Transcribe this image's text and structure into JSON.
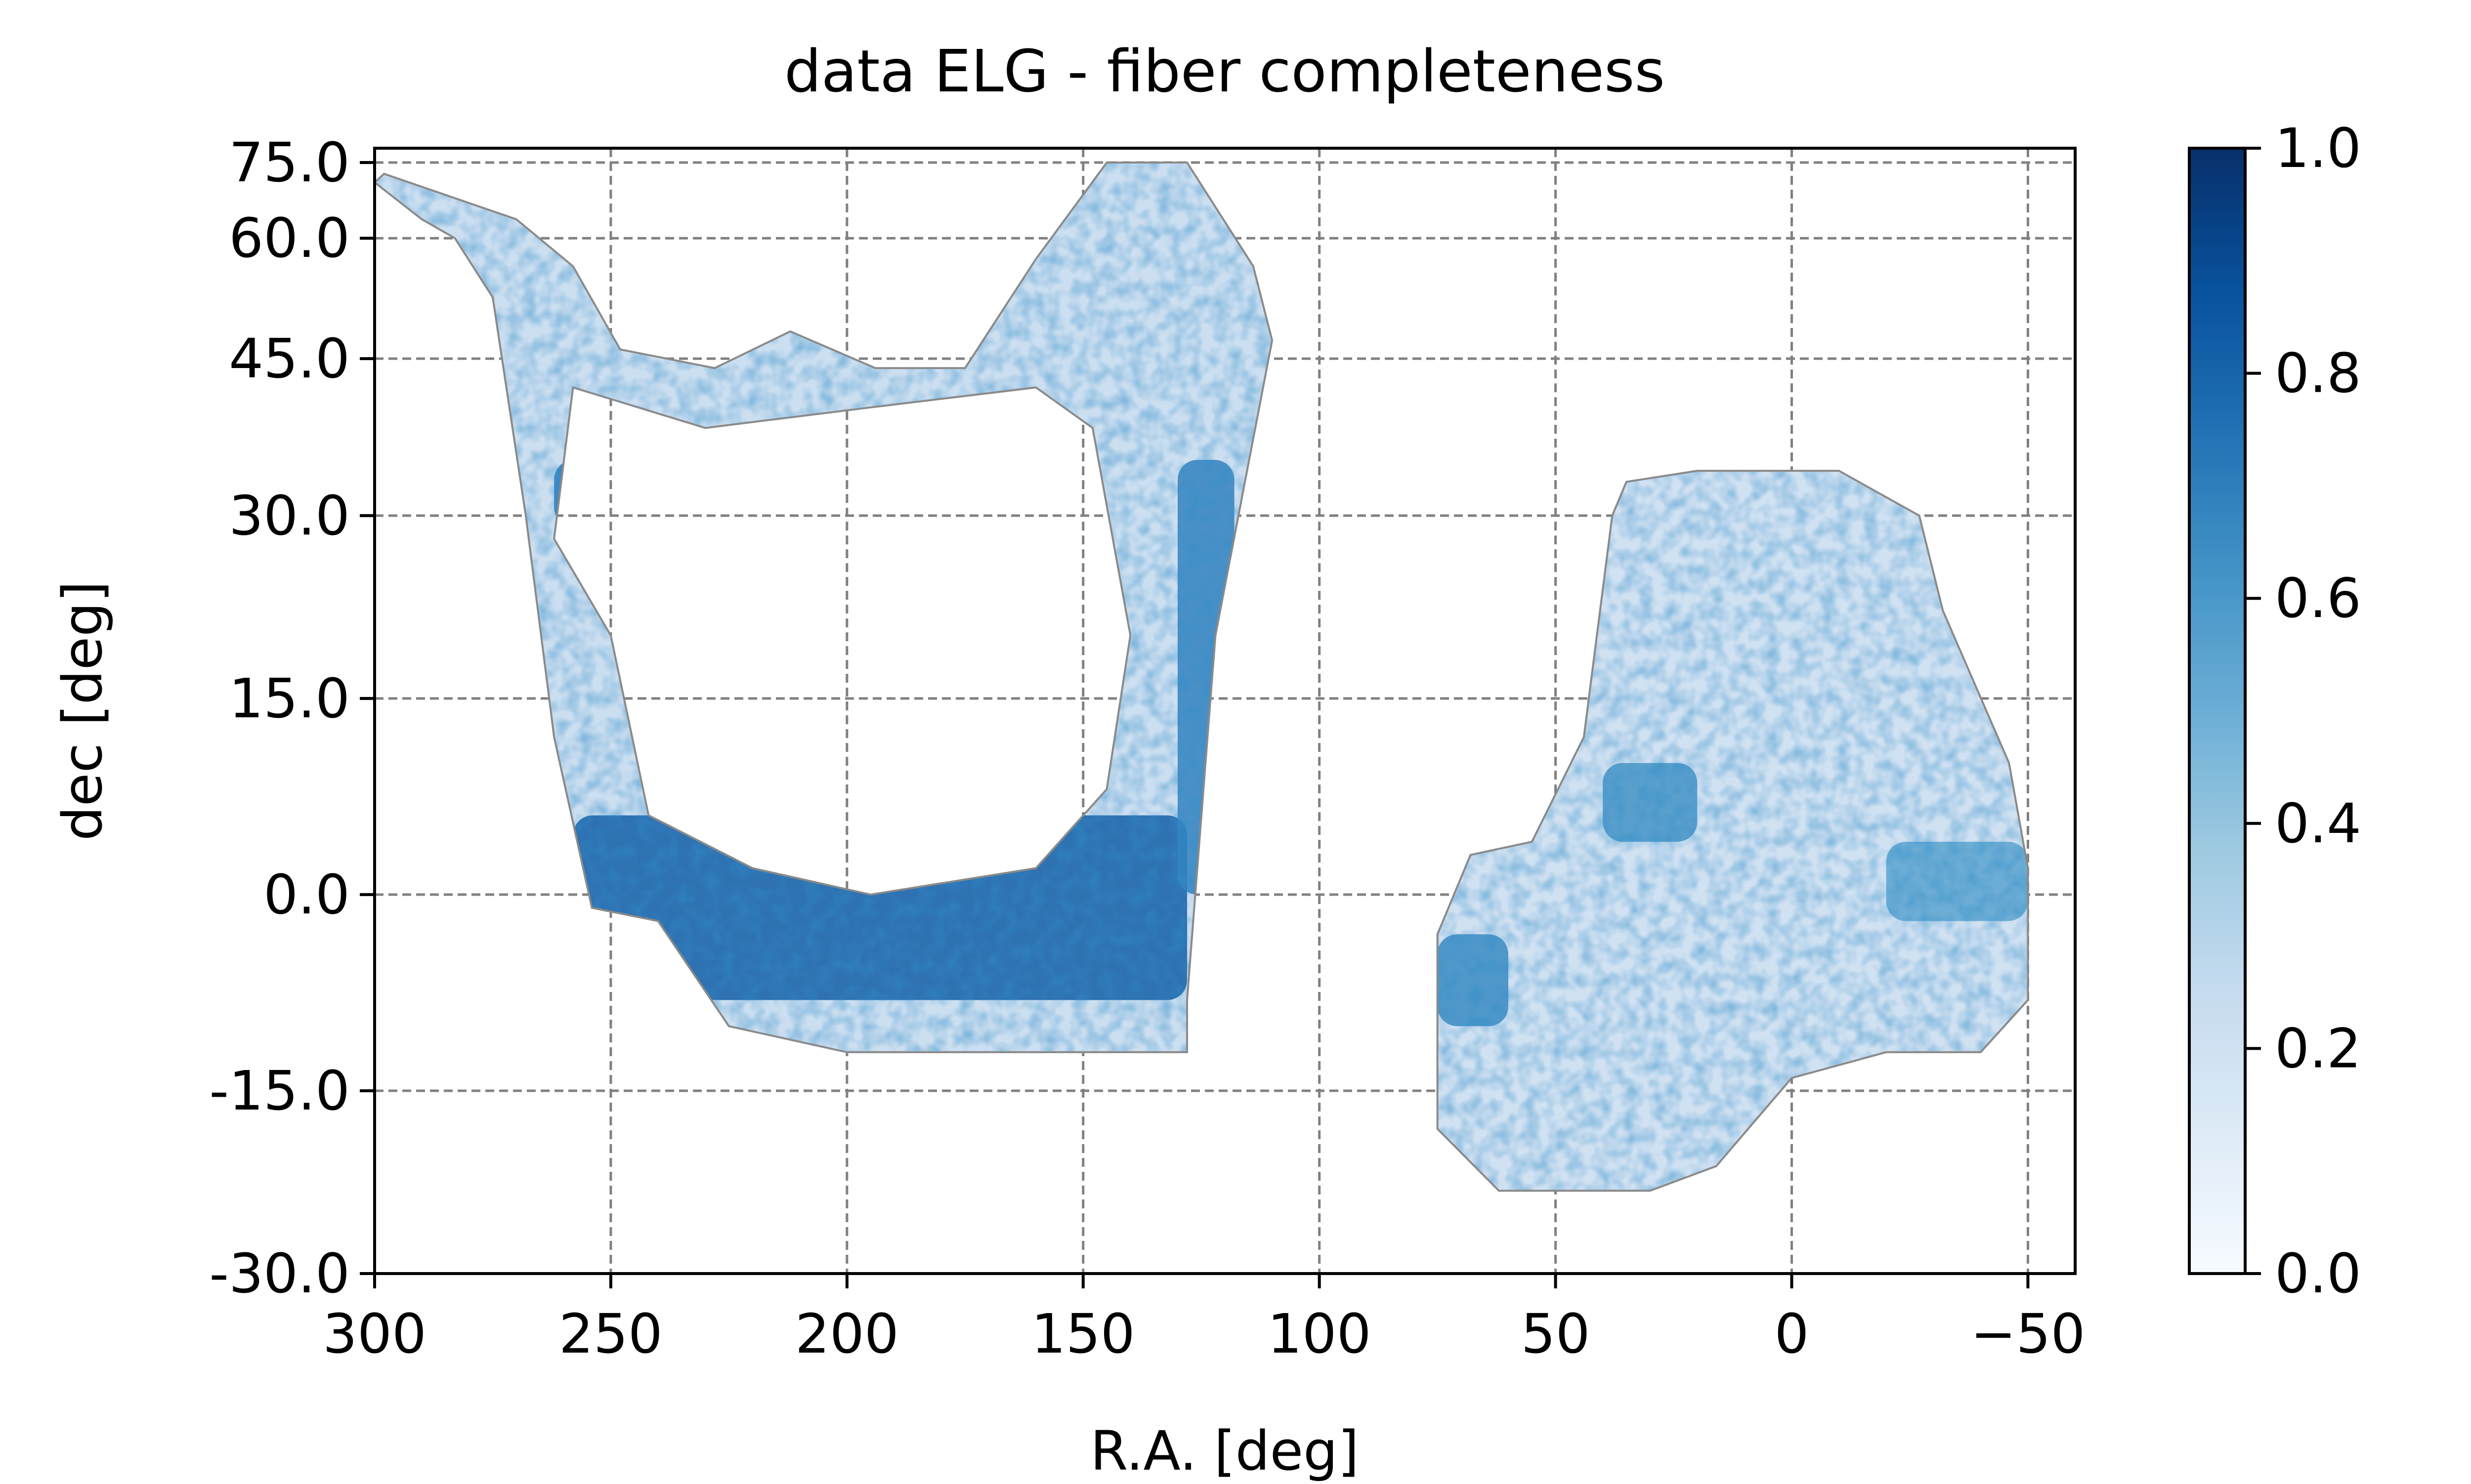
{
  "chart_data": {
    "type": "heatmap",
    "title": "data ELG - fiber completeness",
    "xlabel": "R.A. [deg]",
    "ylabel": "dec [deg]",
    "x_axis": {
      "ticks": [
        300,
        250,
        200,
        150,
        100,
        50,
        0,
        -50
      ],
      "tick_labels": [
        "300",
        "250",
        "200",
        "150",
        "100",
        "50",
        "0",
        "−50"
      ],
      "range": [
        300,
        -60
      ],
      "inverted": true
    },
    "y_axis": {
      "scale": "sin(dec)",
      "ticks": [
        -30,
        -15,
        0,
        15,
        30,
        45,
        60,
        75
      ],
      "tick_labels": [
        "-30.0",
        "-15.0",
        "0.0",
        "15.0",
        "30.0",
        "45.0",
        "60.0",
        "75.0"
      ],
      "range": [
        -30,
        80
      ]
    },
    "grid": true,
    "colorbar": {
      "colormap": "Blues",
      "min": 0.0,
      "max": 1.0,
      "ticks": [
        0.0,
        0.2,
        0.4,
        0.6,
        0.8,
        1.0
      ],
      "tick_labels": [
        "0.0",
        "0.2",
        "0.4",
        "0.6",
        "0.8",
        "1.0"
      ],
      "colors": [
        "#f7fbff",
        "#deebf7",
        "#c6dbef",
        "#9ecae1",
        "#6baed6",
        "#4292c6",
        "#2171b5",
        "#08519c",
        "#08306b"
      ]
    },
    "footprints": [
      {
        "name": "north-galactic-cap",
        "outline_radec": [
          [
            298,
            72
          ],
          [
            270,
            63
          ],
          [
            258,
            56
          ],
          [
            248,
            46
          ],
          [
            228,
            44
          ],
          [
            212,
            48
          ],
          [
            194,
            44
          ],
          [
            175,
            44
          ],
          [
            160,
            57
          ],
          [
            145,
            75
          ],
          [
            128,
            75
          ],
          [
            114,
            56
          ],
          [
            110,
            47
          ],
          [
            122,
            20
          ],
          [
            128,
            -8
          ],
          [
            128,
            -12
          ],
          [
            200,
            -12
          ],
          [
            225,
            -10
          ],
          [
            240,
            -2
          ],
          [
            254,
            -1
          ],
          [
            262,
            12
          ],
          [
            268,
            30
          ],
          [
            275,
            52
          ],
          [
            283,
            60
          ],
          [
            290,
            63
          ],
          [
            300,
            70
          ]
        ],
        "holes_radec": [
          [
            [
              262,
              28
            ],
            [
              250,
              20
            ],
            [
              242,
              6
            ],
            [
              220,
              2
            ],
            [
              195,
              0
            ],
            [
              160,
              2
            ],
            [
              145,
              8
            ],
            [
              140,
              20
            ],
            [
              148,
              38
            ],
            [
              160,
              42
            ],
            [
              195,
              40
            ],
            [
              230,
              38
            ],
            [
              258,
              42
            ]
          ]
        ],
        "features": [
          {
            "name": "dec-zero-band",
            "ra": [
              128,
              258
            ],
            "dec": [
              -8,
              6
            ],
            "value": 0.82
          },
          {
            "name": "dec-thirty-band",
            "ra": [
              180,
              262
            ],
            "dec": [
              29,
              35
            ],
            "value": 0.72
          },
          {
            "name": "east-edge-band",
            "ra": [
              118,
              130
            ],
            "dec": [
              0,
              35
            ],
            "value": 0.68
          }
        ],
        "base_value": 0.22
      },
      {
        "name": "south-galactic-cap",
        "outline_radec": [
          [
            75,
            -3
          ],
          [
            75,
            -18
          ],
          [
            62,
            -23
          ],
          [
            50,
            -23
          ],
          [
            30,
            -23
          ],
          [
            16,
            -21
          ],
          [
            0,
            -14
          ],
          [
            -20,
            -12
          ],
          [
            -40,
            -12
          ],
          [
            -50,
            -8
          ],
          [
            -50,
            2
          ],
          [
            -46,
            10
          ],
          [
            -32,
            22
          ],
          [
            -27,
            30
          ],
          [
            -10,
            34
          ],
          [
            20,
            34
          ],
          [
            35,
            33
          ],
          [
            38,
            30
          ],
          [
            44,
            12
          ],
          [
            55,
            4
          ],
          [
            68,
            3
          ]
        ],
        "features": [
          {
            "name": "dec-eight-band",
            "ra": [
              20,
              40
            ],
            "dec": [
              4,
              10
            ],
            "value": 0.62
          },
          {
            "name": "west-patch",
            "ra": [
              60,
              75
            ],
            "dec": [
              -10,
              -3
            ],
            "value": 0.65
          },
          {
            "name": "dec-zero-east",
            "ra": [
              -50,
              -20
            ],
            "dec": [
              -2,
              4
            ],
            "value": 0.55
          }
        ],
        "base_value": 0.2
      }
    ]
  }
}
